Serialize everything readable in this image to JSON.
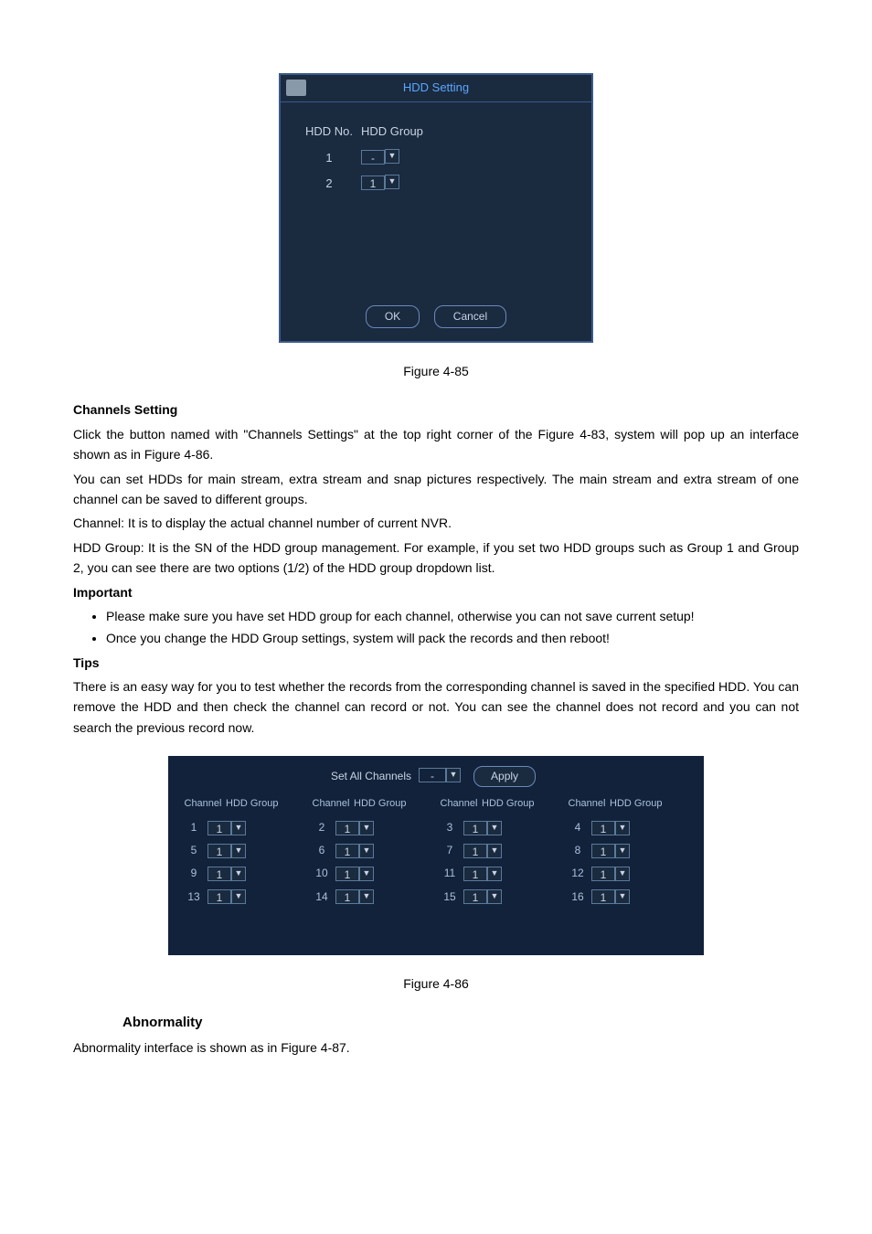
{
  "hdd_dialog": {
    "title": "HDD Setting",
    "col1_header": "HDD No.",
    "col2_header": "HDD Group",
    "rows": [
      {
        "no": "1",
        "group": "-"
      },
      {
        "no": "2",
        "group": "1"
      }
    ],
    "ok_label": "OK",
    "cancel_label": "Cancel"
  },
  "figure1_caption": "Figure 4-85",
  "body": {
    "h1": "Channels Setting",
    "p1": "Click the button named with \"Channels Settings\" at the top right corner of the Figure 4-83, system will pop up an interface shown as in Figure 4-86.",
    "p2": "You can set HDDs for main stream, extra stream and snap pictures respectively. The main stream and extra stream of one channel can be saved to different groups.",
    "p3": "Channel: It is to display the actual channel number of current NVR.",
    "p4": "HDD Group: It is the SN of the HDD group management. For example, if you set two HDD groups such as Group 1 and Group 2, you can see there are two options (1/2) of the HDD group dropdown list.",
    "h2": "Important",
    "b1": "Please make sure you have set HDD group for each channel, otherwise you can not save current setup!",
    "b2": "Once you change the HDD Group settings, system will pack the records and then reboot!",
    "h3": "Tips",
    "p5": "There is an easy way for you to test whether the records from the corresponding channel is saved in the specified HDD. You can remove the HDD and then check the channel can record or not. You can see the channel does not record and you can not search the previous record now."
  },
  "chan_dialog": {
    "set_all_label": "Set All Channels",
    "set_all_value": "-",
    "apply_label": "Apply",
    "col_channel": "Channel",
    "col_group": "HDD Group",
    "rows": [
      [
        "1",
        "2",
        "3",
        "4"
      ],
      [
        "5",
        "6",
        "7",
        "8"
      ],
      [
        "9",
        "10",
        "11",
        "12"
      ],
      [
        "13",
        "14",
        "15",
        "16"
      ]
    ],
    "default_group": "1"
  },
  "figure2_caption": "Figure 4-86",
  "section_heading": "Abnormality",
  "last_line": "Abnormality interface is shown as in Figure 4-87.",
  "colors": {
    "dialog_bg": "#1a2a3f",
    "dialog_border": "#3a5a8a",
    "title_color": "#5aa7ff",
    "text_color": "#c8d4e4",
    "chan_bg": "#12223a"
  }
}
